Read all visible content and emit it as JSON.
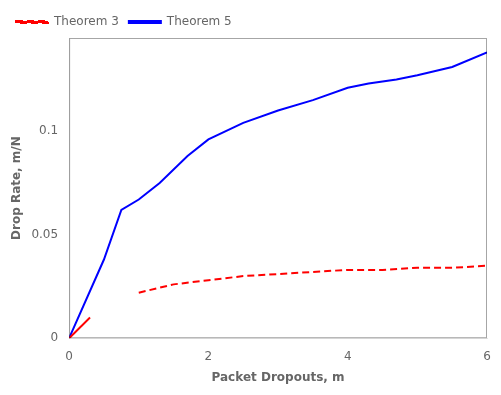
{
  "chart_data": {
    "type": "line",
    "xlabel": "Packet Dropouts, m",
    "ylabel": "Drop Rate, m/N",
    "series": [
      {
        "name": "Theorem 3",
        "color": "#FF0000",
        "line_style": "solid",
        "x": [
          0,
          0.3
        ],
        "values": [
          0,
          0.01
        ]
      },
      {
        "name": "Theorem 3",
        "color": "#FF0000",
        "line_style": "dashed",
        "x": [
          1.0,
          1.5,
          2.0,
          2.5,
          3.0,
          3.5,
          4.0,
          4.5,
          5.0,
          5.5,
          6.0
        ],
        "values": [
          0.022,
          0.026,
          0.028,
          0.03,
          0.031,
          0.032,
          0.033,
          0.033,
          0.034,
          0.034,
          0.035
        ]
      },
      {
        "name": "Theorem 5",
        "color": "#0000FF",
        "line_style": "solid",
        "x": [
          0,
          0.5,
          0.75,
          1.0,
          1.3,
          1.7,
          2.0,
          2.5,
          3.0,
          3.5,
          4.0,
          4.3,
          4.7,
          5.0,
          5.5,
          6.0
        ],
        "values": [
          0,
          0.038,
          0.062,
          0.067,
          0.075,
          0.088,
          0.096,
          0.104,
          0.11,
          0.115,
          0.121,
          0.123,
          0.125,
          0.127,
          0.131,
          0.138
        ]
      }
    ],
    "xlim": [
      0,
      6
    ],
    "ylim": [
      0,
      0.145
    ],
    "xticks": [
      0,
      2,
      4,
      6
    ],
    "yticks": [
      0,
      0.05,
      0.1
    ],
    "grid": false,
    "legend": "upper left",
    "background_color": "#FFFFFF"
  }
}
